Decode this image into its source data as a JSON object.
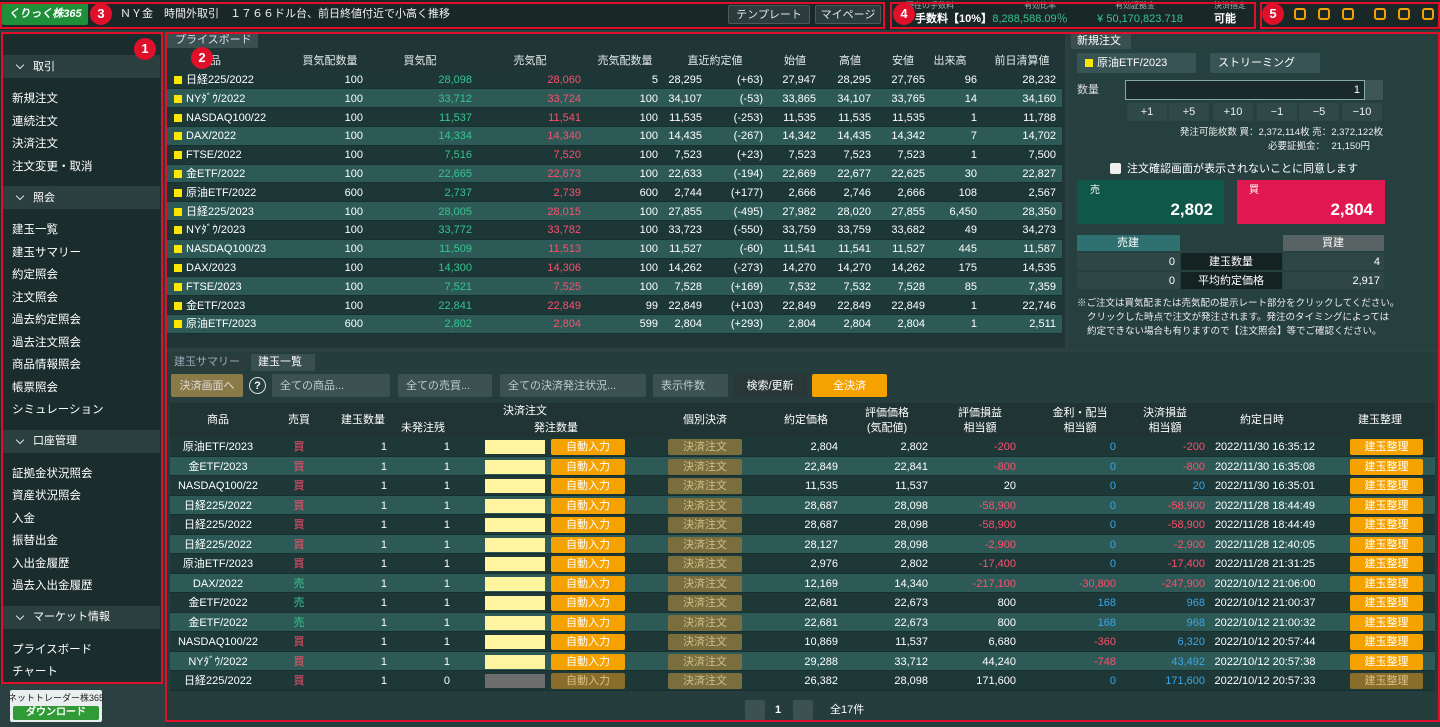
{
  "header": {
    "logo": "くりっく株365",
    "ticker": "ＮＹ金　時間外取引　１７６６ドル台、前日終値付近で小高く推移",
    "buttons": [
      "テンプレート",
      "マイページ"
    ],
    "stats": [
      {
        "label": "現在の手数料",
        "value": "手数料【10%】"
      },
      {
        "label": "有効比率",
        "value": "8,288,588.09％"
      },
      {
        "label": "有効証拠金",
        "value": "¥ 50,170,823.718"
      },
      {
        "label": "決済指定",
        "value": "可能"
      }
    ]
  },
  "markers": [
    "1",
    "2",
    "3",
    "4",
    "5"
  ],
  "sidebar": {
    "sections": [
      {
        "title": "取引",
        "items": [
          "新規注文",
          "連続注文",
          "決済注文",
          "注文変更・取消"
        ]
      },
      {
        "title": "照会",
        "items": [
          "建玉一覧",
          "建玉サマリー",
          "約定照会",
          "注文照会",
          "過去約定照会",
          "過去注文照会",
          "商品情報照会",
          "帳票照会",
          "シミュレーション"
        ]
      },
      {
        "title": "口座管理",
        "items": [
          "証拠金状況照会",
          "資産状況照会",
          "入金",
          "振替出金",
          "入出金履歴",
          "過去入出金履歴"
        ]
      },
      {
        "title": "マーケット情報",
        "items": [
          "プライスボード",
          "チャート"
        ]
      }
    ],
    "download": {
      "title": "ネットトレーダー株365",
      "button": "ダウンロード"
    }
  },
  "price_board": {
    "tab": "プライスボード",
    "columns": [
      "商品",
      "買気配数量",
      "買気配",
      "売気配",
      "売気配数量",
      "直近約定値",
      "始値",
      "高値",
      "安値",
      "出来高",
      "前日清算値"
    ],
    "rows": [
      [
        "日経225/2022",
        "100",
        "28,098",
        "28,060",
        "5",
        "28,295",
        "(+63)",
        "27,947",
        "28,295",
        "27,765",
        "96",
        "28,232"
      ],
      [
        "NYﾀﾞｳ/2022",
        "100",
        "33,712",
        "33,724",
        "100",
        "34,107",
        "(-53)",
        "33,865",
        "34,107",
        "33,765",
        "14",
        "34,160"
      ],
      [
        "NASDAQ100/22",
        "100",
        "11,537",
        "11,541",
        "100",
        "11,535",
        "(-253)",
        "11,535",
        "11,535",
        "11,535",
        "1",
        "11,788"
      ],
      [
        "DAX/2022",
        "100",
        "14,334",
        "14,340",
        "100",
        "14,435",
        "(-267)",
        "14,342",
        "14,435",
        "14,342",
        "7",
        "14,702"
      ],
      [
        "FTSE/2022",
        "100",
        "7,516",
        "7,520",
        "100",
        "7,523",
        "(+23)",
        "7,523",
        "7,523",
        "7,523",
        "1",
        "7,500"
      ],
      [
        "金ETF/2022",
        "100",
        "22,665",
        "22,673",
        "100",
        "22,633",
        "(-194)",
        "22,669",
        "22,677",
        "22,625",
        "30",
        "22,827"
      ],
      [
        "原油ETF/2022",
        "600",
        "2,737",
        "2,739",
        "600",
        "2,744",
        "(+177)",
        "2,666",
        "2,746",
        "2,666",
        "108",
        "2,567"
      ],
      [
        "日経225/2023",
        "100",
        "28,005",
        "28,015",
        "100",
        "27,855",
        "(-495)",
        "27,982",
        "28,020",
        "27,855",
        "6,450",
        "28,350"
      ],
      [
        "NYﾀﾞｳ/2023",
        "100",
        "33,772",
        "33,782",
        "100",
        "33,723",
        "(-550)",
        "33,759",
        "33,759",
        "33,682",
        "49",
        "34,273"
      ],
      [
        "NASDAQ100/23",
        "100",
        "11,509",
        "11,513",
        "100",
        "11,527",
        "(-60)",
        "11,541",
        "11,541",
        "11,527",
        "445",
        "11,587"
      ],
      [
        "DAX/2023",
        "100",
        "14,300",
        "14,306",
        "100",
        "14,262",
        "(-273)",
        "14,270",
        "14,270",
        "14,262",
        "175",
        "14,535"
      ],
      [
        "FTSE/2023",
        "100",
        "7,521",
        "7,525",
        "100",
        "7,528",
        "(+169)",
        "7,532",
        "7,532",
        "7,528",
        "85",
        "7,359"
      ],
      [
        "金ETF/2023",
        "100",
        "22,841",
        "22,849",
        "99",
        "22,849",
        "(+103)",
        "22,849",
        "22,849",
        "22,849",
        "1",
        "22,746"
      ],
      [
        "原油ETF/2023",
        "600",
        "2,802",
        "2,804",
        "599",
        "2,804",
        "(+293)",
        "2,804",
        "2,804",
        "2,804",
        "1",
        "2,511"
      ]
    ]
  },
  "order": {
    "tab": "新規注文",
    "product": "原油ETF/2023",
    "mode": "ストリーミング",
    "qty_label": "数量",
    "qty": "1",
    "steps": [
      "+1",
      "+5",
      "+10",
      "−1",
      "−5",
      "−10"
    ],
    "available": "発注可能枚数 買：2,372,114枚 売：2,372,122枚",
    "margin_label": "必要証拠金：",
    "margin": "21,150円",
    "agree": "注文確認画面が表示されないことに同意します",
    "sell": {
      "label": "売",
      "price": "2,802"
    },
    "buy": {
      "label": "買",
      "price": "2,804"
    },
    "summary": {
      "sell_header": "売建",
      "buy_header": "買建",
      "rows": [
        [
          "0",
          "建玉数量",
          "4"
        ],
        [
          "0",
          "平均約定価格",
          "2,917"
        ]
      ]
    },
    "note": [
      "※ご注文は買気配または売気配の提示レート部分をクリックしてください。",
      "クリックした時点で注文が発注されます。発注のタイミングによっては",
      "約定できない場合も有りますので【注文照会】等でご確認ください。"
    ]
  },
  "positions": {
    "tabs": [
      "建玉サマリー",
      "建玉一覧"
    ],
    "toolbar": {
      "to_settle": "決済画面へ",
      "help": "?",
      "filters": [
        "全ての商品...",
        "全ての売買...",
        "全ての決済発注状況...",
        "表示件数"
      ],
      "search": "検索/更新",
      "settle_all": "全決済"
    },
    "group": "決済注文",
    "columns": [
      "商品",
      "売買",
      "建玉数量",
      "未発注残",
      "発注数量",
      "個別決済",
      "約定価格",
      [
        "評価価格",
        "(気配値)"
      ],
      [
        "評価損益",
        "相当額"
      ],
      [
        "金利・配当",
        "相当額"
      ],
      [
        "決済損益",
        "相当額"
      ],
      "約定日時",
      "建玉整理"
    ],
    "buttons": {
      "auto": "自動入力",
      "settle": "決済注文",
      "organize": "建玉整理"
    },
    "rows": [
      [
        "原油ETF/2023",
        "買",
        "1",
        "1",
        "2,804",
        "2,802",
        "-200",
        "0",
        "-200",
        "2022/11/30 16:35:12"
      ],
      [
        "金ETF/2023",
        "買",
        "1",
        "1",
        "22,849",
        "22,841",
        "-800",
        "0",
        "-800",
        "2022/11/30 16:35:08"
      ],
      [
        "NASDAQ100/22",
        "買",
        "1",
        "1",
        "11,535",
        "11,537",
        "20",
        "0",
        "20",
        "2022/11/30 16:35:01"
      ],
      [
        "日経225/2022",
        "買",
        "1",
        "1",
        "28,687",
        "28,098",
        "-58,900",
        "0",
        "-58,900",
        "2022/11/28 18:44:49"
      ],
      [
        "日経225/2022",
        "買",
        "1",
        "1",
        "28,687",
        "28,098",
        "-58,900",
        "0",
        "-58,900",
        "2022/11/28 18:44:49"
      ],
      [
        "日経225/2022",
        "買",
        "1",
        "1",
        "28,127",
        "28,098",
        "-2,900",
        "0",
        "-2,900",
        "2022/11/28 12:40:05"
      ],
      [
        "原油ETF/2023",
        "買",
        "1",
        "1",
        "2,976",
        "2,802",
        "-17,400",
        "0",
        "-17,400",
        "2022/11/28 21:31:25"
      ],
      [
        "DAX/2022",
        "売",
        "1",
        "1",
        "12,169",
        "14,340",
        "-217,100",
        "-30,800",
        "-247,900",
        "2022/10/12 21:06:00"
      ],
      [
        "金ETF/2022",
        "売",
        "1",
        "1",
        "22,681",
        "22,673",
        "800",
        "168",
        "968",
        "2022/10/12 21:00:37"
      ],
      [
        "金ETF/2022",
        "売",
        "1",
        "1",
        "22,681",
        "22,673",
        "800",
        "168",
        "968",
        "2022/10/12 21:00:32"
      ],
      [
        "NASDAQ100/22",
        "買",
        "1",
        "1",
        "10,869",
        "11,537",
        "6,680",
        "-360",
        "6,320",
        "2022/10/12 20:57:44"
      ],
      [
        "NYﾀﾞｳ/2022",
        "買",
        "1",
        "1",
        "29,288",
        "33,712",
        "44,240",
        "-748",
        "43,492",
        "2022/10/12 20:57:38"
      ],
      [
        "日経225/2022",
        "買",
        "1",
        "0",
        "26,382",
        "28,098",
        "171,600",
        "0",
        "171,600",
        "2022/10/12 20:57:33"
      ]
    ],
    "page": "1",
    "total": "全17件"
  }
}
